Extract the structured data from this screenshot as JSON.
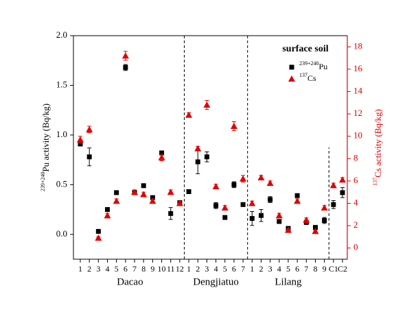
{
  "chart_data": {
    "type": "scatter",
    "title": "surface soil",
    "y_label": "239+240Pu activity (Bq/kg)",
    "y2_label": "137Cs activity (Bq/kg)",
    "groups": [
      {
        "name": "Dacao",
        "categories": [
          "1",
          "2",
          "3",
          "4",
          "5",
          "6",
          "7",
          "8",
          "9",
          "10",
          "11",
          "12"
        ]
      },
      {
        "name": "Dengjiatuo",
        "categories": [
          "1",
          "2",
          "3",
          "4",
          "5",
          "6",
          "7"
        ]
      },
      {
        "name": "Lilang",
        "categories": [
          "1",
          "2",
          "3",
          "4",
          "5",
          "6",
          "7",
          "8",
          "9"
        ]
      },
      {
        "name": null,
        "categories": [
          "C1",
          "C2"
        ]
      }
    ],
    "ylim": [
      -0.25,
      2.0
    ],
    "yticks": [
      {
        "value": 0,
        "label": "0.0"
      },
      {
        "value": 0.5,
        "label": "0.5"
      },
      {
        "value": 1,
        "label": "1.0"
      },
      {
        "value": 1.5,
        "label": "1.5"
      },
      {
        "value": 2,
        "label": "2.0"
      }
    ],
    "y2lim": [
      -1,
      19
    ],
    "y2ticks": [
      0,
      2,
      4,
      6,
      8,
      10,
      12,
      14,
      16,
      18
    ],
    "y2_color": "#e00000",
    "legend": "top-right",
    "series": [
      {
        "name": "239+240Pu",
        "color": "#000000",
        "marker": "square",
        "values": [
          0.91,
          0.78,
          0.03,
          0.25,
          0.42,
          1.68,
          0.42,
          0.49,
          0.37,
          0.82,
          0.21,
          0.32,
          0.43,
          0.73,
          0.78,
          0.29,
          0.17,
          0.5,
          0.3,
          0.16,
          0.19,
          0.35,
          0.13,
          0.06,
          0.39,
          0.12,
          0.07,
          0.14,
          0.3,
          0.42
        ],
        "errors": [
          0.02,
          0.09,
          0.01,
          0.01,
          0.01,
          0.03,
          0.01,
          0.01,
          0.01,
          0.02,
          0.06,
          0.01,
          0.02,
          0.12,
          0.05,
          0.03,
          0.01,
          0.03,
          0.01,
          0.07,
          0.06,
          0.03,
          0.02,
          0.01,
          0.01,
          0.02,
          0.01,
          0.03,
          0.04,
          0.05
        ]
      },
      {
        "name": "137Cs",
        "color": "#e00000",
        "marker": "triangle",
        "axis": "y2",
        "values": [
          9.7,
          10.6,
          0.9,
          2.9,
          4.2,
          17.2,
          5.0,
          4.8,
          4.2,
          8.1,
          5.0,
          4.0,
          11.9,
          8.9,
          12.8,
          5.5,
          3.6,
          10.9,
          6.2,
          4.0,
          6.3,
          5.8,
          2.9,
          1.6,
          4.2,
          2.5,
          1.5,
          3.6,
          5.6,
          6.1
        ],
        "errors": [
          0.3,
          0.3,
          0.1,
          0.2,
          0.2,
          0.4,
          0.2,
          0.2,
          0.2,
          0.3,
          0.2,
          0.2,
          0.2,
          0.2,
          0.4,
          0.2,
          0.2,
          0.4,
          0.3,
          0.2,
          0.2,
          0.2,
          0.2,
          0.1,
          0.2,
          0.2,
          0.1,
          0.2,
          0.2,
          0.2
        ]
      }
    ]
  }
}
